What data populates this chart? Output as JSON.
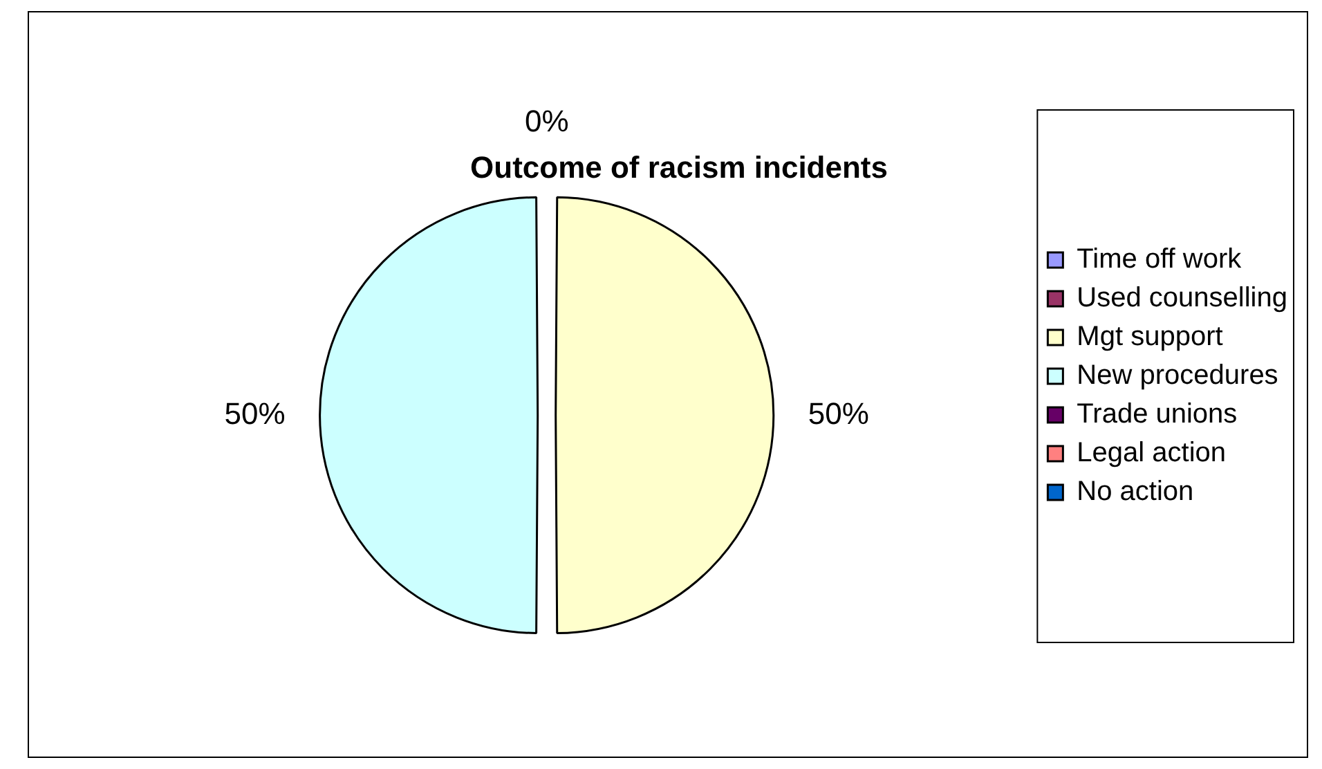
{
  "chart_data": {
    "type": "pie",
    "title": "Outcome of racism incidents",
    "categories": [
      "Time off work",
      "Used counselling",
      "Mgt support",
      "New procedures",
      "Trade unions",
      "Legal action",
      "No action"
    ],
    "values": [
      0,
      0,
      50,
      50,
      0,
      0,
      0
    ],
    "value_labels": [
      "0%",
      null,
      "50%",
      "50%",
      null,
      null,
      null
    ],
    "colors": [
      "#9999ff",
      "#993366",
      "#ffffcc",
      "#ccffff",
      "#660066",
      "#ff8080",
      "#0066cc"
    ],
    "legend": "right"
  }
}
